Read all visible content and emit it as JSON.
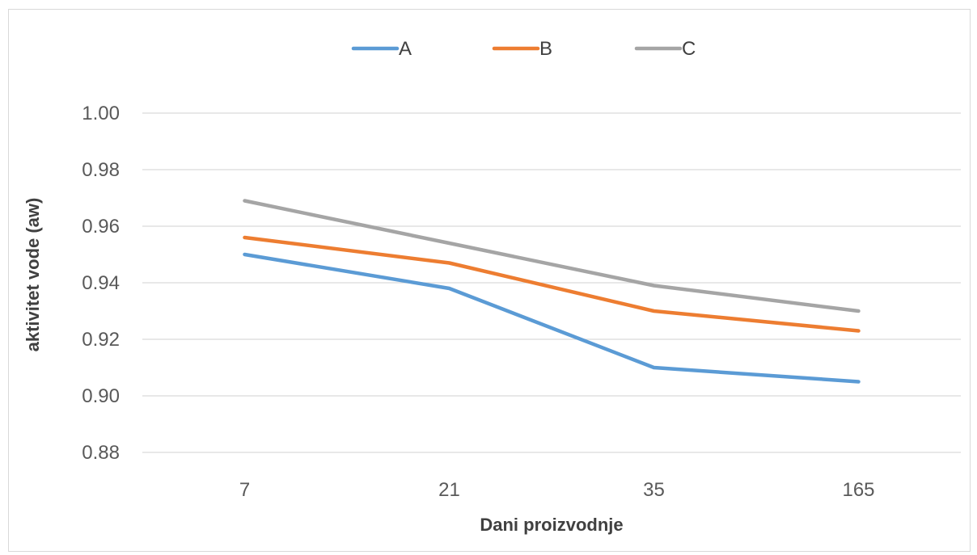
{
  "chart_data": {
    "type": "line",
    "categories": [
      "7",
      "21",
      "35",
      "165"
    ],
    "series": [
      {
        "name": "A",
        "values": [
          0.95,
          0.938,
          0.91,
          0.905
        ],
        "color": "#5b9bd5"
      },
      {
        "name": "B",
        "values": [
          0.956,
          0.947,
          0.93,
          0.923
        ],
        "color": "#ed7d31"
      },
      {
        "name": "C",
        "values": [
          0.969,
          0.954,
          0.939,
          0.93
        ],
        "color": "#a5a5a5"
      }
    ],
    "xlabel": "Dani proizvodnje",
    "ylabel": "aktivitet vode (aw)",
    "ylim": [
      0.88,
      1.0
    ],
    "yticks": [
      "0.88",
      "0.90",
      "0.92",
      "0.94",
      "0.96",
      "0.98",
      "1.00"
    ],
    "grid": true,
    "gridline_color": "#d9d9d9",
    "legend_position": "top"
  }
}
